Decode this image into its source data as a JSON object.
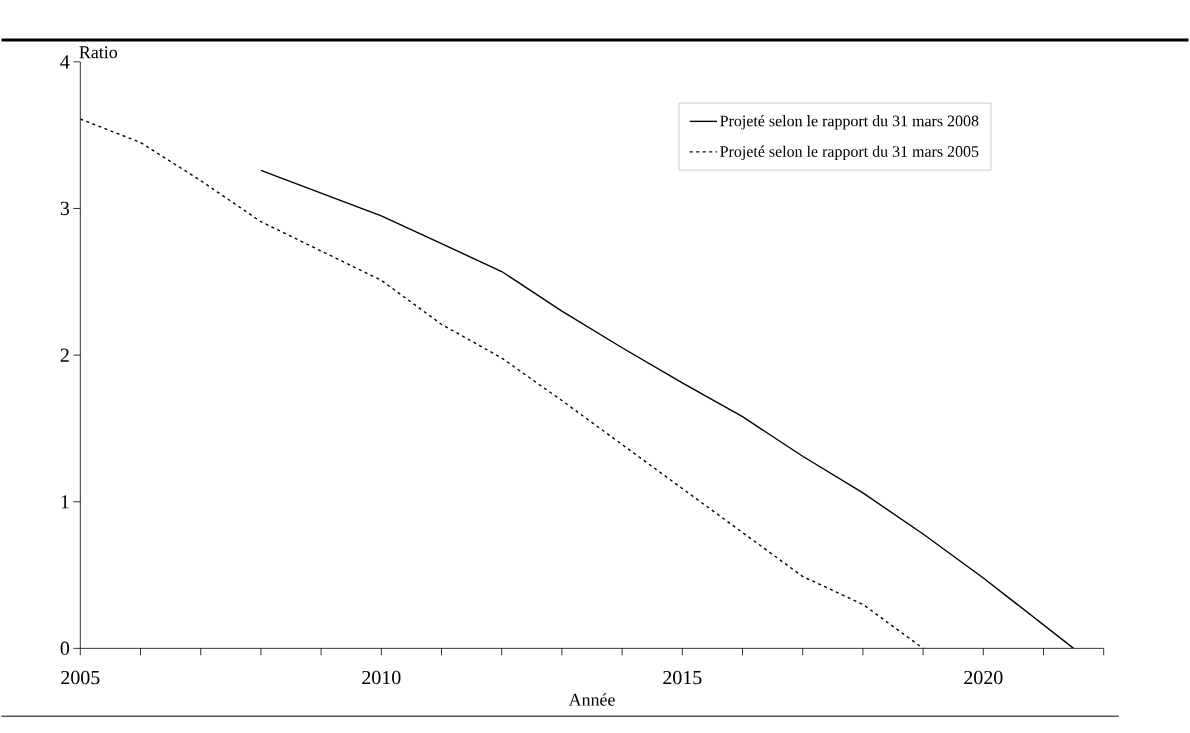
{
  "chart_data": {
    "type": "line",
    "xlabel": "Année",
    "ylabel": "Ratio",
    "xlim": [
      2005,
      2022
    ],
    "ylim": [
      0,
      4
    ],
    "xticks": [
      2005,
      {
        "value": 2006,
        "label": null
      },
      {
        "value": 2007,
        "label": null
      },
      {
        "value": 2008,
        "label": null
      },
      {
        "value": 2009,
        "label": null
      },
      2010,
      {
        "value": 2011,
        "label": null
      },
      {
        "value": 2012,
        "label": null
      },
      {
        "value": 2013,
        "label": null
      },
      {
        "value": 2014,
        "label": null
      },
      2015,
      {
        "value": 2016,
        "label": null
      },
      {
        "value": 2017,
        "label": null
      },
      {
        "value": 2018,
        "label": null
      },
      {
        "value": 2019,
        "label": null
      },
      2020,
      {
        "value": 2021,
        "label": null
      },
      {
        "value": 2022,
        "label": null
      }
    ],
    "yticks": [
      0,
      1,
      2,
      3,
      4
    ],
    "grid": false,
    "legend": "top right",
    "marker": "none",
    "series": [
      {
        "name": "Projeté selon le rapport du 31 mars 2008",
        "color": "#000000",
        "line_style": "solid",
        "x": [
          2008,
          2010,
          2011,
          2012,
          2013,
          2014,
          2015,
          2016,
          2017,
          2018,
          2019,
          2020,
          2021.5
        ],
        "values": [
          3.26,
          2.95,
          2.76,
          2.57,
          2.3,
          2.05,
          1.81,
          1.58,
          1.31,
          1.06,
          0.78,
          0.48,
          0
        ]
      },
      {
        "name": "Projeté selon le rapport du 31 mars 2005",
        "color": "#000000",
        "line_style": "dotted",
        "x": [
          2005,
          2006,
          2007,
          2008,
          2009,
          2010,
          2011,
          2012,
          2013,
          2014,
          2015,
          2016,
          2017,
          2018,
          2019
        ],
        "values": [
          3.61,
          3.45,
          3.19,
          2.91,
          2.71,
          2.51,
          2.21,
          1.98,
          1.69,
          1.39,
          1.09,
          0.79,
          0.49,
          0.3,
          0
        ]
      }
    ]
  }
}
